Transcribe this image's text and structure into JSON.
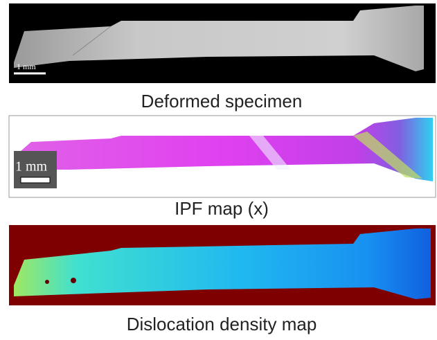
{
  "panels": [
    {
      "caption": "Deformed specimen",
      "scale_bar": "1 mm"
    },
    {
      "caption": "IPF map (x)",
      "scale_bar": "1 mm"
    },
    {
      "caption": "Dislocation density map"
    }
  ]
}
